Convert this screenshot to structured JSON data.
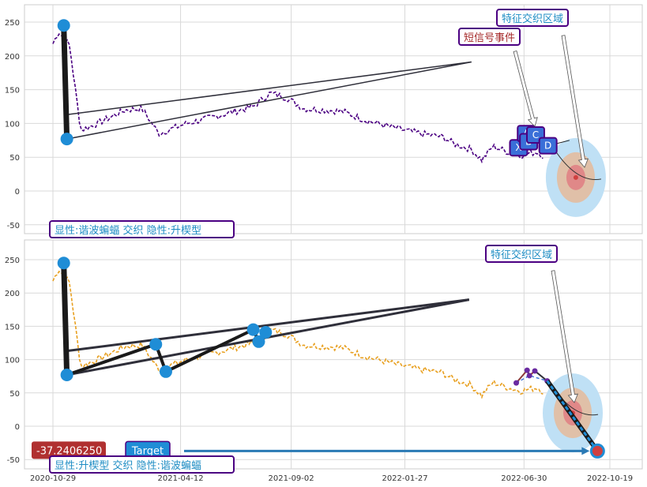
{
  "chart_data": [
    {
      "type": "line",
      "panel": "top",
      "ylim": [
        -62,
        270
      ],
      "y_ticks": [
        -50,
        0,
        50,
        100,
        150,
        200,
        250
      ],
      "grid": true,
      "price_color": "#4b0082",
      "anchor_points": [
        {
          "date": "2020-11-12",
          "value": 245
        },
        {
          "date": "2020-11-16",
          "value": 77
        }
      ],
      "trend_lines": [
        {
          "from": {
            "date": "2020-11-16",
            "value": 113
          },
          "to": {
            "date": "2022-04-23",
            "value": 191
          }
        },
        {
          "from": {
            "date": "2020-11-16",
            "value": 77
          },
          "to": {
            "date": "2022-04-23",
            "value": 191
          }
        }
      ],
      "xabcd_points": [
        {
          "label": "X",
          "date": "2022-06-23",
          "value": 64
        },
        {
          "label": "A",
          "date": "2022-07-03",
          "value": 85
        },
        {
          "label": "B",
          "date": "2022-07-06",
          "value": 73
        },
        {
          "label": "C",
          "date": "2022-07-15",
          "value": 83
        },
        {
          "label": "D",
          "date": "2022-07-31",
          "value": 67
        }
      ],
      "target_zone": {
        "date": "2022-09-05",
        "value": 20
      },
      "annotations": [
        {
          "text": "特征交织区域",
          "kind": "region",
          "color": "#1f8dc4"
        },
        {
          "text": "短信号事件",
          "kind": "signal",
          "color": "#a52a2a"
        },
        {
          "text": "显性:谐波蝙蝠 交织 隐性:升楔型",
          "kind": "pattern",
          "color": "#1f8dc4"
        }
      ]
    },
    {
      "type": "line",
      "panel": "bottom",
      "ylim": [
        -62,
        270
      ],
      "y_ticks": [
        -50,
        0,
        50,
        100,
        150,
        200,
        250
      ],
      "x_ticks": [
        "2020-10-29",
        "2021-04-12",
        "2021-09-02",
        "2022-01-27",
        "2022-06-30",
        "2022-10-19"
      ],
      "grid": true,
      "price_color": "#e8a020",
      "anchor_points": [
        {
          "date": "2020-11-12",
          "value": 245
        },
        {
          "date": "2020-11-16",
          "value": 77
        },
        {
          "date": "2021-03-11",
          "value": 123
        },
        {
          "date": "2021-03-24",
          "value": 82
        },
        {
          "date": "2021-07-15",
          "value": 145
        },
        {
          "date": "2021-07-22",
          "value": 127
        },
        {
          "date": "2021-07-31",
          "value": 141
        }
      ],
      "trend_lines": [
        {
          "from": {
            "date": "2020-11-16",
            "value": 113
          },
          "to": {
            "date": "2022-04-20",
            "value": 190
          }
        },
        {
          "from": {
            "date": "2020-11-16",
            "value": 77
          },
          "to": {
            "date": "2022-04-20",
            "value": 190
          }
        }
      ],
      "pattern_points": [
        {
          "date": "2022-06-20",
          "value": 65
        },
        {
          "date": "2022-07-04",
          "value": 84
        },
        {
          "date": "2022-07-07",
          "value": 76
        },
        {
          "date": "2022-07-14",
          "value": 83
        },
        {
          "date": "2022-07-30",
          "value": 68
        }
      ],
      "target_zone": {
        "date": "2022-09-01",
        "value": 20
      },
      "target_point": {
        "date": "2022-10-03",
        "value": -37.240625
      },
      "target_value_label": "-37.2406250",
      "target_label": "Target",
      "annotations": [
        {
          "text": "特征交织区域",
          "kind": "region",
          "color": "#1f8dc4"
        },
        {
          "text": "显性:升楔型 交织 隐性:谐波蝙蝠",
          "kind": "pattern",
          "color": "#1f8dc4"
        }
      ]
    }
  ]
}
